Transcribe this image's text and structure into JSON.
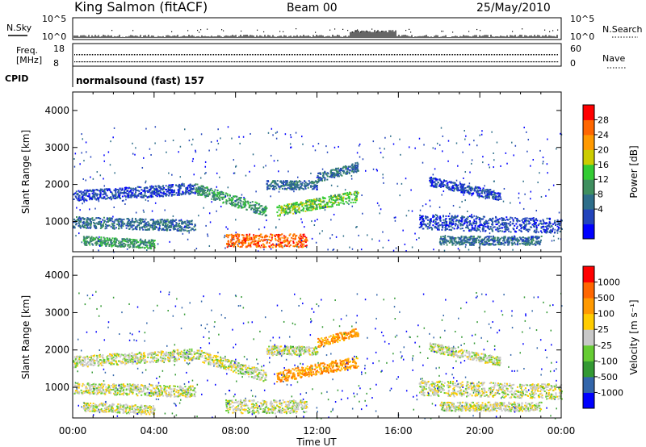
{
  "header": {
    "station": "King Salmon (fitACF)",
    "beam": "Beam 00",
    "date": "25/May/2010"
  },
  "top_panel": {
    "left_label": "N.Sky",
    "left_ticks": [
      "10^5",
      "10^0"
    ],
    "right_label": "N.Search",
    "right_ticks": [
      "10^5",
      "10^0"
    ]
  },
  "freq_panel": {
    "left_label_1": "Freq.",
    "left_label_2": "[MHz]",
    "left_ticks": [
      "18",
      "8"
    ],
    "right_label": "Nave",
    "right_ticks": [
      "60",
      "0"
    ]
  },
  "cpid": {
    "label": "CPID",
    "text": "normalsound (fast) 157"
  },
  "chart_data": [
    {
      "type": "heatmap",
      "name": "power",
      "ylabel": "Slant Range [km]",
      "ylim": [
        180,
        4500
      ],
      "yticks": [
        "4000",
        "3000",
        "2000",
        "1000"
      ],
      "colorbar_label": "Power [dB]",
      "colorbar_ticks": [
        "28",
        "24",
        "20",
        "16",
        "12",
        "8",
        "4"
      ],
      "colorbar_colors": [
        "#0000ff",
        "#2244bb",
        "#2e6e8a",
        "#3f8f5f",
        "#33cc33",
        "#cccc00",
        "#ff9900",
        "#ff6600",
        "#ff0000"
      ],
      "xlim_hours": [
        0,
        24
      ]
    },
    {
      "type": "heatmap",
      "name": "velocity",
      "ylabel": "Slant Range [km]",
      "ylim": [
        180,
        4500
      ],
      "yticks": [
        "4000",
        "3000",
        "2000",
        "1000"
      ],
      "colorbar_label": "Velocity [m s⁻¹]",
      "colorbar_ticks": [
        "1000",
        "500",
        "100",
        "25",
        "-25",
        "-100",
        "-500",
        "-1000"
      ],
      "colorbar_colors": [
        "#0000ff",
        "#3366aa",
        "#339933",
        "#66cc33",
        "#c8c8c8",
        "#ffcc00",
        "#ff9900",
        "#ff6600",
        "#ff0000"
      ],
      "xlim_hours": [
        0,
        24
      ]
    }
  ],
  "x_axis": {
    "ticks": [
      "00:00",
      "04:00",
      "08:00",
      "12:00",
      "16:00",
      "20:00",
      "00:00"
    ],
    "label": "Time UT"
  }
}
